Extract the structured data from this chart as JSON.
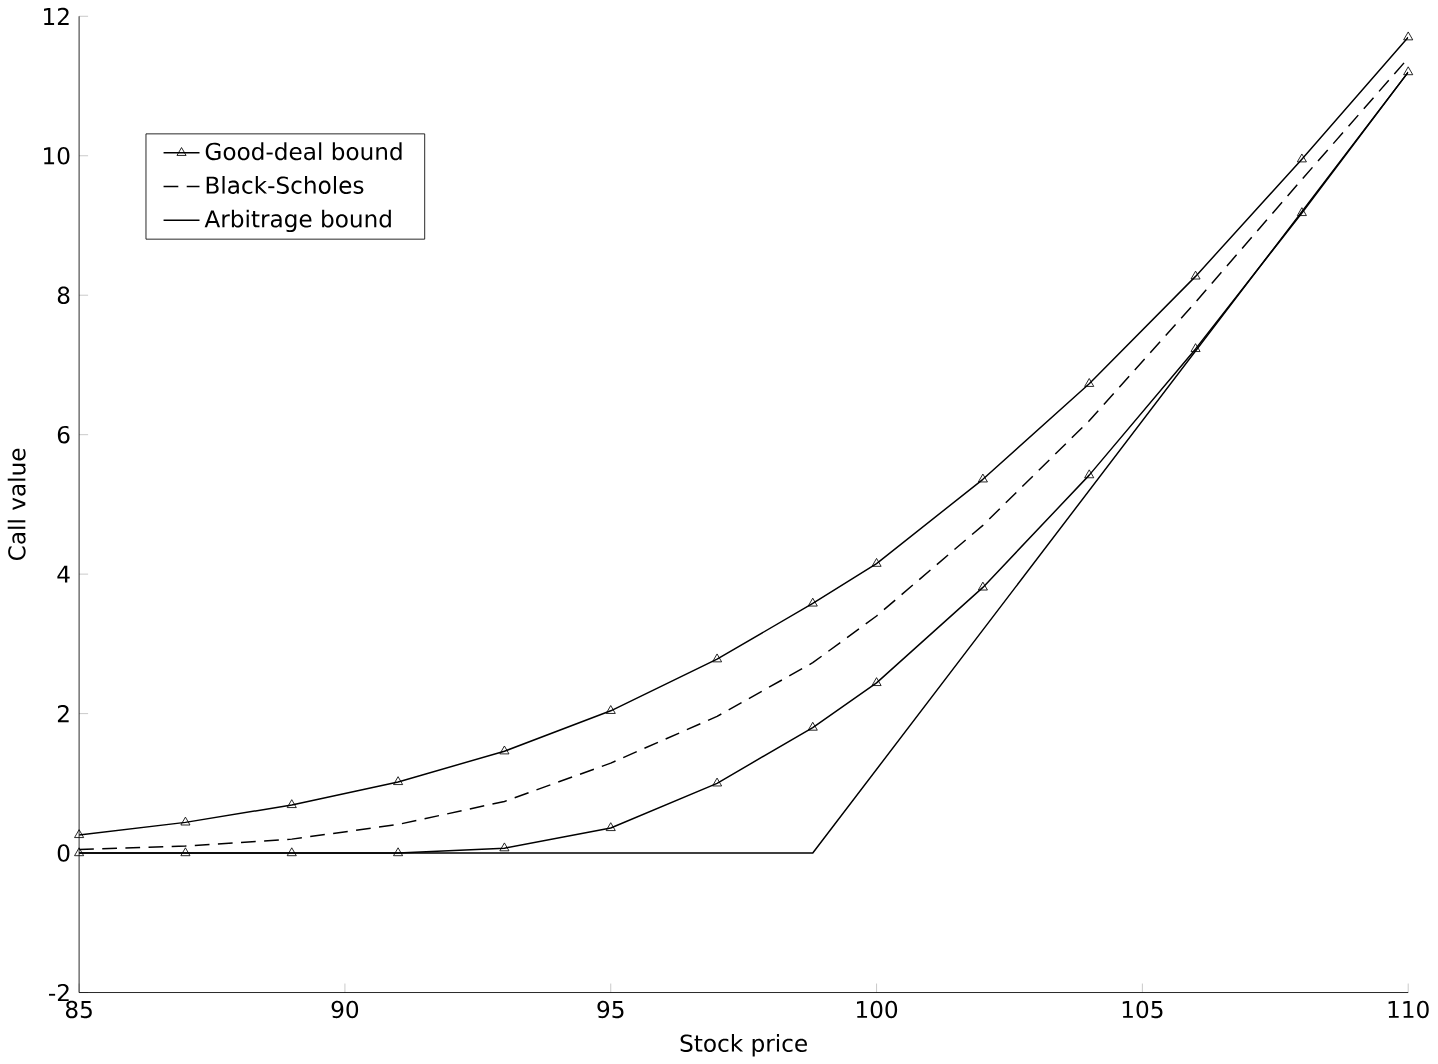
{
  "chart_data": {
    "type": "line",
    "xlabel": "Stock price",
    "ylabel": "Call value",
    "xlim": [
      85,
      110
    ],
    "xticks": [
      85,
      90,
      95,
      100,
      105,
      110
    ],
    "ylim": [
      -2,
      12
    ],
    "yticks": [
      -2,
      0,
      2,
      4,
      6,
      8,
      10,
      12
    ],
    "grid": false,
    "legend": "top left",
    "line_style": "solid",
    "series": [
      {
        "name": "Good-deal bound",
        "color": "#000000",
        "marker": "triangle",
        "x": [
          85,
          87,
          89,
          91,
          93,
          95,
          97,
          98.8,
          100,
          102,
          104,
          106,
          108,
          110
        ],
        "values": [
          0.26,
          0.44,
          0.69,
          1.02,
          1.46,
          2.04,
          2.78,
          3.58,
          4.15,
          5.36,
          6.73,
          8.27,
          9.95,
          11.7
        ]
      },
      {
        "name": "Black-Scholes",
        "color": "#000000",
        "line_style": "dashed",
        "marker": "none",
        "x": [
          85,
          87,
          89,
          91,
          93,
          95,
          97,
          98.8,
          100,
          102,
          104,
          106,
          108,
          110
        ],
        "values": [
          0.05,
          0.1,
          0.2,
          0.41,
          0.74,
          1.29,
          1.96,
          2.73,
          3.4,
          4.7,
          6.2,
          7.9,
          9.66,
          11.4
        ]
      },
      {
        "name": "Arbitrage bound",
        "color": "#000000",
        "x": [
          85,
          98.8,
          110
        ],
        "values": [
          0,
          0,
          11.2
        ]
      },
      {
        "color": "#000000",
        "marker": "triangle",
        "x": [
          85,
          87,
          89,
          91,
          93,
          95,
          97,
          98.8,
          100,
          102,
          104,
          106,
          108,
          110
        ],
        "values": [
          0,
          0,
          0,
          0,
          0.07,
          0.36,
          1.0,
          1.8,
          2.44,
          3.81,
          5.42,
          7.23,
          9.18,
          11.2
        ]
      }
    ]
  }
}
